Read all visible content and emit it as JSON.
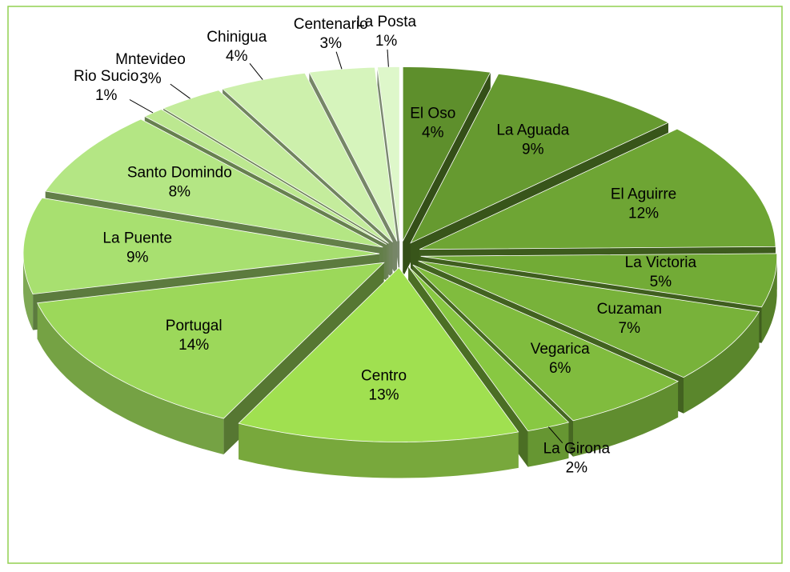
{
  "chart_data": {
    "type": "pie3d",
    "categories": [
      "El Oso",
      "La Aguada",
      "El Aguirre",
      "La Victoria",
      "Cuzaman",
      "Vegarica",
      "La Girona",
      "Centro",
      "Portugal",
      "La Puente",
      "Santo Domindo",
      "Rio Sucio",
      "Mntevideo",
      "Chinigua",
      "Centenario",
      "La Posta"
    ],
    "values": [
      4,
      9,
      12,
      5,
      7,
      6,
      2,
      13,
      14,
      9,
      8,
      1,
      3,
      4,
      3,
      1
    ],
    "value_labels": [
      "4%",
      "9%",
      "12%",
      "5%",
      "7%",
      "6%",
      "2%",
      "13%",
      "14%",
      "9%",
      "8%",
      "1%",
      "3%",
      "4%",
      "3%",
      "1%"
    ],
    "colors": [
      "#5e8f2c",
      "#669a30",
      "#6ea534",
      "#72ab36",
      "#78b23a",
      "#80bc3e",
      "#88c842",
      "#a0e050",
      "#9cd85a",
      "#a8e070",
      "#b4e684",
      "#bce890",
      "#c4ec9c",
      "#cdf0ac",
      "#d6f4bc",
      "#def7ca"
    ]
  }
}
